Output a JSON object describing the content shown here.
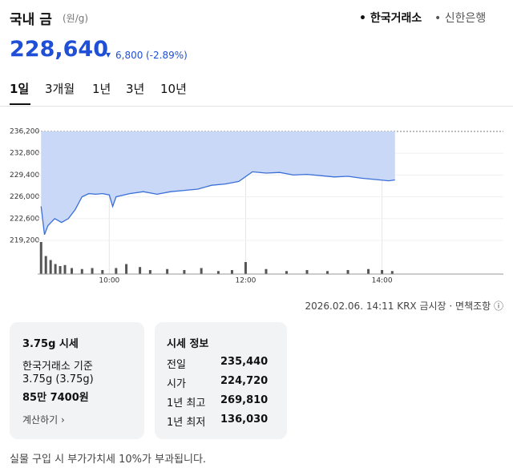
{
  "header": {
    "title": "국내 금",
    "unit": "(원/g)",
    "sources": [
      "• 한국거래소",
      "• 신한은행"
    ]
  },
  "price": {
    "value": "228,640",
    "arrow": "▾",
    "change": "6,800",
    "change_pct": "(-2.89%)"
  },
  "tabs": [
    "1일",
    "3개월",
    "1년",
    "3년",
    "10년"
  ],
  "chart_data": {
    "type": "line",
    "x": [
      9.0,
      9.05,
      9.1,
      9.2,
      9.3,
      9.4,
      9.5,
      9.6,
      9.7,
      9.8,
      9.9,
      10.0,
      10.05,
      10.1,
      10.3,
      10.5,
      10.7,
      10.9,
      11.1,
      11.3,
      11.5,
      11.7,
      11.9,
      12.1,
      12.3,
      12.5,
      12.7,
      12.9,
      13.1,
      13.3,
      13.5,
      13.7,
      13.9,
      14.1,
      14.19
    ],
    "series": [
      {
        "color": "#3a6fd8",
        "fill": "#c9d8f7",
        "values": [
          224500,
          220100,
          221500,
          222600,
          222000,
          222600,
          224000,
          226000,
          226500,
          226400,
          226500,
          226300,
          224500,
          226000,
          226500,
          226800,
          226400,
          226800,
          227000,
          227200,
          227800,
          228000,
          228400,
          229900,
          229700,
          229800,
          229400,
          229500,
          229300,
          229100,
          229200,
          228900,
          228700,
          228500,
          228640
        ]
      }
    ],
    "xlim": [
      8.95,
      15.78
    ],
    "ylim": [
      219200,
      236200
    ],
    "yticks": [
      {
        "value": 236200,
        "label": "236,200"
      },
      {
        "value": 232800,
        "label": "232,800"
      },
      {
        "value": 229400,
        "label": "229,400"
      },
      {
        "value": 226000,
        "label": "226,000"
      },
      {
        "value": 222600,
        "label": "222,600"
      },
      {
        "value": 219200,
        "label": "219,200"
      }
    ],
    "xticks": [
      {
        "value": 10,
        "label": "10:00"
      },
      {
        "value": 12,
        "label": "12:00"
      },
      {
        "value": 14,
        "label": "14:00"
      }
    ],
    "volume": {
      "color": "#555555",
      "x": [
        9.0,
        9.07,
        9.14,
        9.21,
        9.28,
        9.35,
        9.45,
        9.6,
        9.75,
        9.9,
        10.1,
        10.25,
        10.45,
        10.6,
        10.85,
        11.1,
        11.35,
        11.6,
        11.8,
        12.0,
        12.3,
        12.6,
        12.9,
        13.2,
        13.5,
        13.8,
        14.0,
        14.15
      ],
      "values": [
        32,
        18,
        14,
        10,
        8,
        9,
        6,
        5,
        6,
        4,
        6,
        10,
        7,
        4,
        5,
        4,
        6,
        3,
        4,
        12,
        5,
        3,
        4,
        3,
        4,
        5,
        4,
        3
      ]
    }
  },
  "timestamp": "2026.02.06. 14:11 KRX 금시장 · 면책조항 ⓘ",
  "card1": {
    "title": "3.75g 시세",
    "lines": [
      "한국거래소 기준",
      "3.75g (3.75g)",
      "85만 7400원"
    ],
    "link": "계산하기 ›"
  },
  "card2": {
    "title": "시세 정보",
    "rows": [
      [
        "전일",
        "235,440"
      ],
      [
        "시가",
        "224,720"
      ],
      [
        "1년 최고",
        "269,810"
      ],
      [
        "1년 최저",
        "136,030"
      ]
    ]
  },
  "footnote": "실물 구입 시 부가가치세 10%가 부과됩니다."
}
